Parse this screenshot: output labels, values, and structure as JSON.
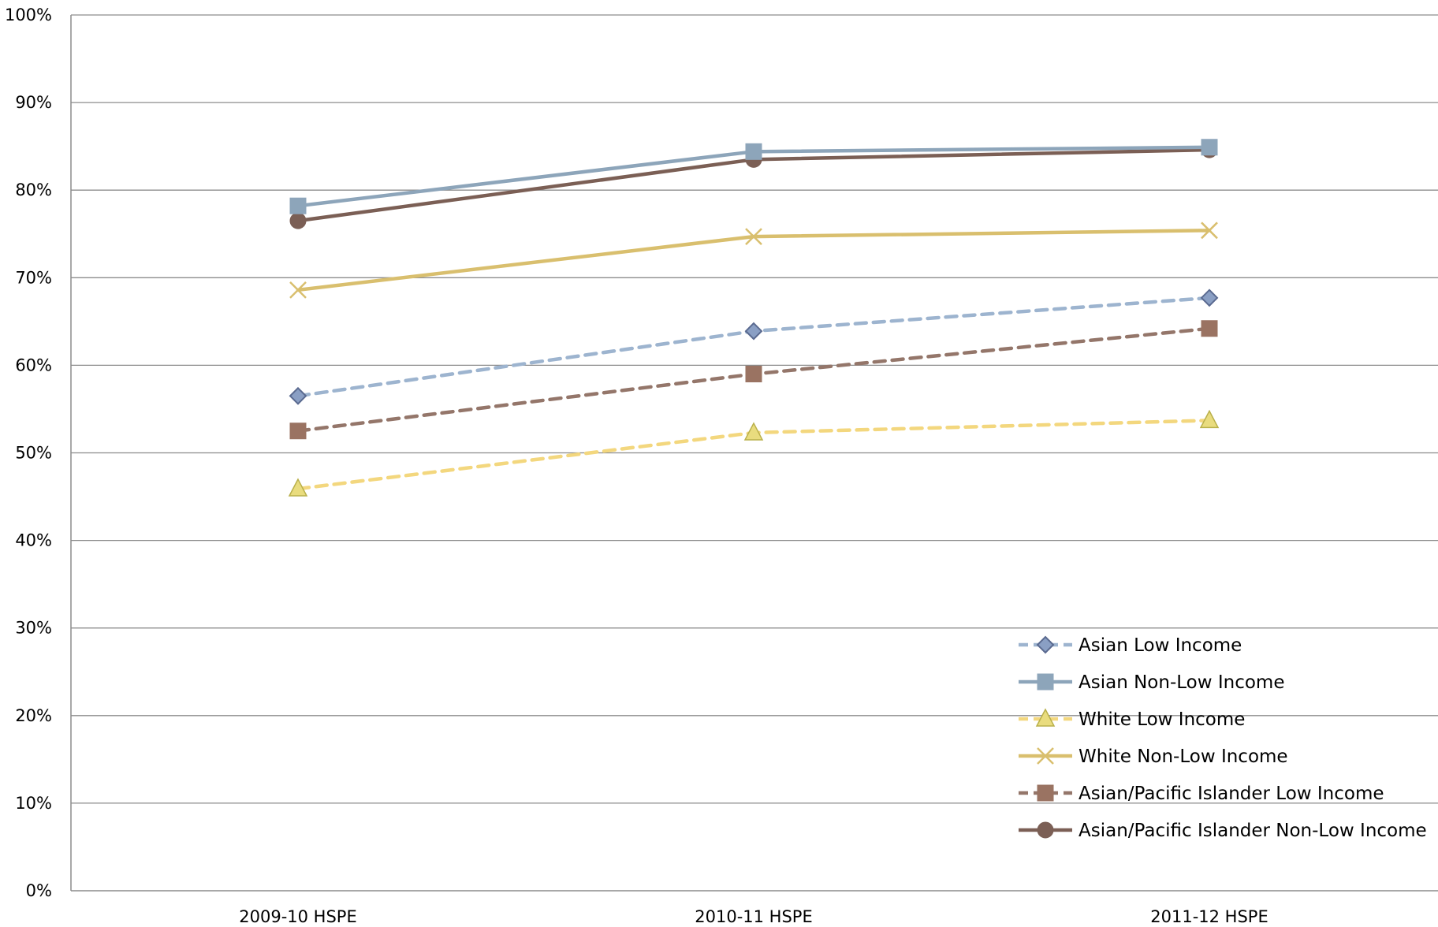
{
  "chart_data": {
    "type": "line",
    "title": "",
    "xlabel": "",
    "ylabel": "",
    "categories": [
      "2009-10 HSPE",
      "2010-11 HSPE",
      "2011-12 HSPE"
    ],
    "ylim": [
      0,
      100
    ],
    "y_ticks": [
      "0%",
      "10%",
      "20%",
      "30%",
      "40%",
      "50%",
      "60%",
      "70%",
      "80%",
      "90%",
      "100%"
    ],
    "grid": true,
    "legend_position": "bottom-right",
    "series": [
      {
        "name": "Asian Low Income",
        "values": [
          56.5,
          63.9,
          67.7
        ],
        "color": "#9db4cf",
        "marker": "diamond",
        "marker_fill": "#8a9fc4",
        "marker_stroke": "#5a6a90",
        "dashed": true
      },
      {
        "name": "Asian Non-Low Income",
        "values": [
          78.2,
          84.4,
          84.9
        ],
        "color": "#8da5ba",
        "marker": "square",
        "marker_fill": "#8da5ba",
        "marker_stroke": "#8da5ba",
        "dashed": false
      },
      {
        "name": "White Low Income",
        "values": [
          45.9,
          52.3,
          53.7
        ],
        "color": "#f3d77e",
        "marker": "triangle",
        "marker_fill": "#e9dc7e",
        "marker_stroke": "#b9b04a",
        "dashed": true
      },
      {
        "name": "White Non-Low Income",
        "values": [
          68.6,
          74.7,
          75.4
        ],
        "color": "#d9bf6e",
        "marker": "x",
        "marker_fill": "none",
        "marker_stroke": "#d9bf6e",
        "dashed": false
      },
      {
        "name": "Asian/Pacific Islander Low Income",
        "values": [
          52.5,
          59.0,
          64.2
        ],
        "color": "#94766a",
        "marker": "square",
        "marker_fill": "#9a7362",
        "marker_stroke": "#9a7362",
        "dashed": true
      },
      {
        "name": "Asian/Pacific Islander Non-Low Income",
        "values": [
          76.5,
          83.5,
          84.6
        ],
        "color": "#7b5f55",
        "marker": "circle",
        "marker_fill": "#7b5f55",
        "marker_stroke": "#7b5f55",
        "dashed": false
      }
    ]
  }
}
